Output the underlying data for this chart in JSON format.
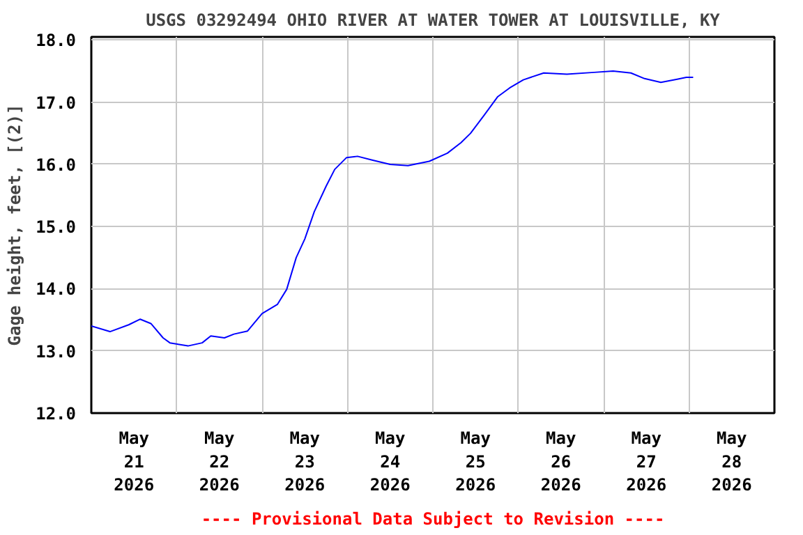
{
  "chart_data": {
    "type": "line",
    "title": "USGS 03292494 OHIO RIVER AT WATER TOWER AT LOUISVILLE, KY",
    "ylabel": "Gage height, feet, [(2)]",
    "annotations": [
      "---- Provisional Data Subject to Revision ----"
    ],
    "grid": true,
    "marker": "none",
    "line_style": "solid",
    "xlim": [
      "2026-05-21T00:00",
      "2026-05-29T00:00"
    ],
    "xticks": [
      {
        "value": "2026-05-21T00:00",
        "label": null
      },
      {
        "value": "2026-05-21T12:00",
        "label": "May\n21\n2026"
      },
      {
        "value": "2026-05-22T00:00",
        "label": null
      },
      {
        "value": "2026-05-22T12:00",
        "label": "May\n22\n2026"
      },
      {
        "value": "2026-05-23T00:00",
        "label": null
      },
      {
        "value": "2026-05-23T12:00",
        "label": "May\n23\n2026"
      },
      {
        "value": "2026-05-24T00:00",
        "label": null
      },
      {
        "value": "2026-05-24T12:00",
        "label": "May\n24\n2026"
      },
      {
        "value": "2026-05-25T00:00",
        "label": null
      },
      {
        "value": "2026-05-25T12:00",
        "label": "May\n25\n2026"
      },
      {
        "value": "2026-05-26T00:00",
        "label": null
      },
      {
        "value": "2026-05-26T12:00",
        "label": "May\n26\n2026"
      },
      {
        "value": "2026-05-27T00:00",
        "label": null
      },
      {
        "value": "2026-05-27T12:00",
        "label": "May\n27\n2026"
      },
      {
        "value": "2026-05-28T00:00",
        "label": null
      },
      {
        "value": "2026-05-28T12:00",
        "label": "May\n28\n2026"
      },
      {
        "value": "2026-05-29T00:00",
        "label": null
      }
    ],
    "ylim": [
      12,
      18.05
    ],
    "yticks": [
      {
        "value": 12,
        "label": "12.0"
      },
      {
        "value": 13,
        "label": "13.0"
      },
      {
        "value": 14,
        "label": "14.0"
      },
      {
        "value": 15,
        "label": "15.0"
      },
      {
        "value": 16,
        "label": "16.0"
      },
      {
        "value": 17,
        "label": "17.0"
      },
      {
        "value": 18,
        "label": "18.0"
      }
    ],
    "x": [
      "2026-05-21T00:00",
      "2026-05-21T05:15",
      "2026-05-21T10:30",
      "2026-05-21T13:45",
      "2026-05-21T16:45",
      "2026-05-21T20:10",
      "2026-05-21T22:05",
      "2026-05-22T03:10",
      "2026-05-22T07:10",
      "2026-05-22T09:35",
      "2026-05-22T13:25",
      "2026-05-22T16:05",
      "2026-05-22T19:55",
      "2026-05-23T00:00",
      "2026-05-23T04:20",
      "2026-05-23T06:55",
      "2026-05-23T09:35",
      "2026-05-23T12:00",
      "2026-05-23T14:40",
      "2026-05-23T18:00",
      "2026-05-23T20:25",
      "2026-05-23T23:45",
      "2026-05-24T02:50",
      "2026-05-24T06:55",
      "2026-05-24T12:00",
      "2026-05-24T17:00",
      "2026-05-24T23:00",
      "2026-05-25T04:05",
      "2026-05-25T07:55",
      "2026-05-25T10:35",
      "2026-05-25T14:25",
      "2026-05-25T18:15",
      "2026-05-25T21:35",
      "2026-05-26T01:25",
      "2026-05-26T07:10",
      "2026-05-26T13:40",
      "2026-05-26T21:20",
      "2026-05-27T02:40",
      "2026-05-27T07:40",
      "2026-05-27T11:30",
      "2026-05-27T16:05",
      "2026-05-27T20:40",
      "2026-05-27T23:15",
      "2026-05-28T01:10"
    ],
    "series": [
      {
        "color": "#0000ff",
        "values": [
          13.4,
          13.31,
          13.42,
          13.51,
          13.44,
          13.21,
          13.13,
          13.08,
          13.13,
          13.24,
          13.21,
          13.27,
          13.32,
          13.6,
          13.75,
          13.99,
          14.5,
          14.8,
          15.24,
          15.65,
          15.92,
          16.11,
          16.13,
          16.07,
          16.0,
          15.98,
          16.05,
          16.18,
          16.35,
          16.5,
          16.79,
          17.09,
          17.23,
          17.36,
          17.47,
          17.45,
          17.48,
          17.5,
          17.47,
          17.38,
          17.32,
          17.37,
          17.4,
          17.4
        ]
      }
    ]
  }
}
